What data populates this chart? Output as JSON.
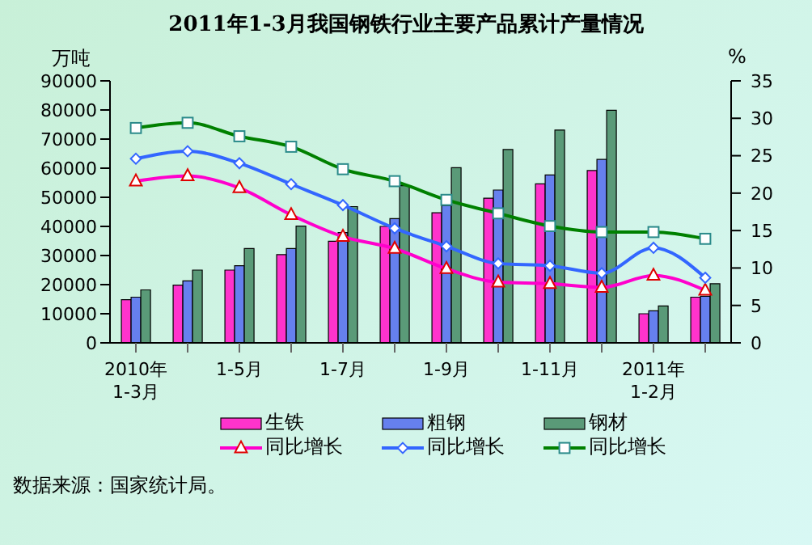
{
  "chart_data": {
    "type": "bar",
    "title": "2011年1-3月我国钢铁行业主要产品累计产量情况",
    "ylabel": "万吨",
    "y2label": "%",
    "categories": [
      "2010年\n1-3月",
      null,
      "1-5月",
      null,
      "1-7月",
      null,
      "1-9月",
      null,
      "1-11月",
      null,
      "2011年\n1-2月",
      null
    ],
    "series": [
      {
        "name": "生铁",
        "color": "#ff33cc",
        "values": [
          14800,
          19800,
          25000,
          30300,
          34900,
          40000,
          44700,
          49700,
          54600,
          59200,
          10000,
          15700
        ]
      },
      {
        "name": "粗钢",
        "color": "#6680ee",
        "values": [
          15700,
          21300,
          26500,
          32400,
          37900,
          42700,
          47200,
          52500,
          57700,
          63000,
          11000,
          16000
        ]
      },
      {
        "name": "钢材",
        "color": "#5a9a78",
        "values": [
          18200,
          25000,
          32400,
          40100,
          46800,
          54000,
          60200,
          66400,
          73100,
          79900,
          12700,
          20300
        ]
      },
      {
        "name": "同比增长",
        "type": "line",
        "axis": "y2",
        "marker": "triangle",
        "color": "#ff00cc",
        "values": [
          21.6,
          22.3,
          20.7,
          17.1,
          14.2,
          12.6,
          9.9,
          8.1,
          7.9,
          7.4,
          9.0,
          7.0
        ]
      },
      {
        "name": "同比增长",
        "type": "line",
        "axis": "y2",
        "marker": "diamond",
        "color": "#3366ff",
        "values": [
          24.6,
          25.6,
          24.0,
          21.2,
          18.4,
          15.3,
          12.9,
          10.6,
          10.3,
          9.3,
          12.7,
          8.7
        ]
      },
      {
        "name": "同比增长",
        "type": "line",
        "axis": "y2",
        "marker": "square",
        "color": "#008000",
        "values": [
          28.7,
          29.4,
          27.6,
          26.2,
          23.2,
          21.6,
          19.1,
          17.3,
          15.6,
          14.8,
          14.8,
          13.9
        ]
      }
    ],
    "ylim": [
      0,
      90000
    ],
    "yticks": [
      0,
      10000,
      20000,
      30000,
      40000,
      50000,
      60000,
      70000,
      80000,
      90000
    ],
    "y2lim": [
      0,
      35
    ],
    "y2ticks": [
      0,
      5,
      10,
      15,
      20,
      25,
      30,
      35
    ],
    "grid": false,
    "legend": "bottom",
    "annotations": [
      "数据来源：国家统计局。"
    ]
  }
}
